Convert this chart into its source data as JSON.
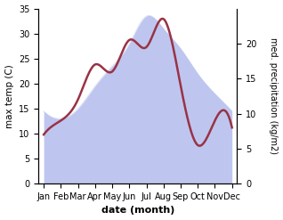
{
  "months": [
    "Jan",
    "Feb",
    "Mar",
    "Apr",
    "May",
    "Jun",
    "Jul",
    "Aug",
    "Sep",
    "Oct",
    "Nov",
    "Dec"
  ],
  "max_temp": [
    14.5,
    13.0,
    15.0,
    19.5,
    23.5,
    28.0,
    33.5,
    31.0,
    27.0,
    22.0,
    18.0,
    14.5
  ],
  "precipitation": [
    7.0,
    9.0,
    12.0,
    17.0,
    16.0,
    20.5,
    19.5,
    23.5,
    14.0,
    5.5,
    9.0,
    8.0
  ],
  "temp_color_fill": "#b3bcee",
  "temp_fill_alpha": 0.85,
  "precip_color": "#993344",
  "left_ylim": [
    0,
    35
  ],
  "right_ylim": [
    0,
    25
  ],
  "right_yticks": [
    0,
    5,
    10,
    15,
    20
  ],
  "left_yticks": [
    0,
    5,
    10,
    15,
    20,
    25,
    30,
    35
  ],
  "xlabel": "date (month)",
  "ylabel_left": "max temp (C)",
  "ylabel_right": "med. precipitation (kg/m2)",
  "bg_color": "#ffffff"
}
